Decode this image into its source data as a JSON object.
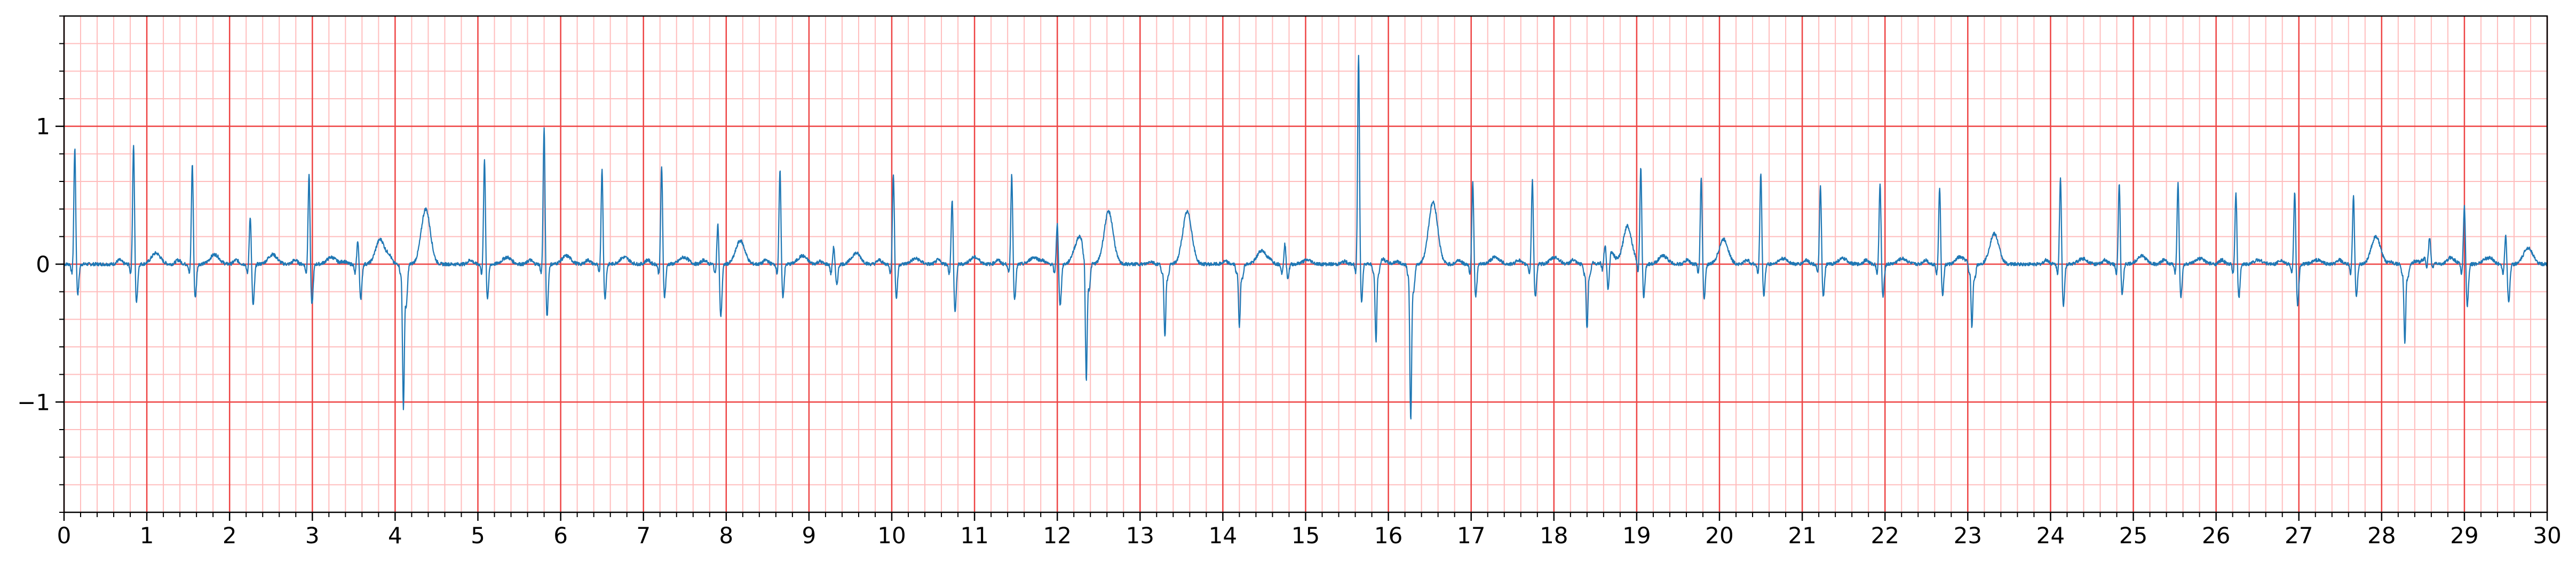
{
  "chart_data": {
    "type": "line",
    "title": "",
    "xlabel": "",
    "ylabel": "",
    "xlim": [
      0,
      30
    ],
    "ylim": [
      -1.8,
      1.8
    ],
    "x_major_ticks": [
      0,
      1,
      2,
      3,
      4,
      5,
      6,
      7,
      8,
      9,
      10,
      11,
      12,
      13,
      14,
      15,
      16,
      17,
      18,
      19,
      20,
      21,
      22,
      23,
      24,
      25,
      26,
      27,
      28,
      29,
      30
    ],
    "x_tick_labels": [
      "0",
      "1",
      "2",
      "3",
      "4",
      "5",
      "6",
      "7",
      "8",
      "9",
      "10",
      "11",
      "12",
      "13",
      "14",
      "15",
      "16",
      "17",
      "18",
      "19",
      "20",
      "21",
      "22",
      "23",
      "24",
      "25",
      "26",
      "27",
      "28",
      "29",
      "30"
    ],
    "x_minor_step": 0.2,
    "y_major_ticks": [
      -1,
      0,
      1
    ],
    "y_tick_labels": [
      "−1",
      "0",
      "1"
    ],
    "y_minor_step": 0.2,
    "grid": true,
    "major_grid_color": "#ee4444",
    "minor_grid_color": "#ffbdbd",
    "line_color": "#1f77b4",
    "beats": [
      {
        "t": 0.13,
        "r": 0.85,
        "s": -0.22,
        "p": 0.0,
        "tw": 0.0
      },
      {
        "t": 0.84,
        "r": 0.88,
        "s": -0.28,
        "p": 0.03,
        "tw": 0.08
      },
      {
        "t": 1.55,
        "r": 0.74,
        "s": -0.25,
        "p": 0.03,
        "tw": 0.07
      },
      {
        "t": 2.25,
        "r": 0.36,
        "s": -0.3,
        "p": 0.03,
        "tw": 0.07
      },
      {
        "t": 2.96,
        "r": 0.67,
        "s": -0.3,
        "p": 0.03,
        "tw": 0.05
      },
      {
        "t": 3.55,
        "r": 0.18,
        "s": -0.25,
        "p": 0.02,
        "tw": 0.18
      },
      {
        "t": 4.1,
        "r": -1.03,
        "s": -0.3,
        "p": 0.05,
        "tw": 0.4
      },
      {
        "t": 5.08,
        "r": 0.77,
        "s": -0.25,
        "p": 0.03,
        "tw": 0.05
      },
      {
        "t": 5.8,
        "r": 1.0,
        "s": -0.38,
        "p": 0.03,
        "tw": 0.06
      },
      {
        "t": 6.5,
        "r": 0.7,
        "s": -0.25,
        "p": 0.03,
        "tw": 0.05
      },
      {
        "t": 7.22,
        "r": 0.72,
        "s": -0.24,
        "p": 0.03,
        "tw": 0.05
      },
      {
        "t": 7.9,
        "r": 0.3,
        "s": -0.38,
        "p": 0.03,
        "tw": 0.17
      },
      {
        "t": 8.65,
        "r": 0.69,
        "s": -0.24,
        "p": 0.03,
        "tw": 0.06
      },
      {
        "t": 9.3,
        "r": 0.13,
        "s": -0.15,
        "p": 0.02,
        "tw": 0.08
      },
      {
        "t": 10.02,
        "r": 0.67,
        "s": -0.25,
        "p": 0.03,
        "tw": 0.04
      },
      {
        "t": 10.73,
        "r": 0.48,
        "s": -0.35,
        "p": 0.03,
        "tw": 0.05
      },
      {
        "t": 11.45,
        "r": 0.66,
        "s": -0.26,
        "p": 0.03,
        "tw": 0.05
      },
      {
        "t": 12.0,
        "r": 0.3,
        "s": -0.3,
        "p": 0.02,
        "tw": 0.2
      },
      {
        "t": 12.35,
        "r": -0.9,
        "s": -0.2,
        "p": 0.02,
        "tw": 0.38
      },
      {
        "t": 13.3,
        "r": -0.52,
        "s": -0.1,
        "p": 0.02,
        "tw": 0.38
      },
      {
        "t": 14.2,
        "r": -0.45,
        "s": -0.1,
        "p": 0.02,
        "tw": 0.1
      },
      {
        "t": 14.75,
        "r": 0.15,
        "s": -0.1,
        "p": 0.02,
        "tw": 0.03
      },
      {
        "t": 15.64,
        "r": 1.53,
        "s": -0.3,
        "p": 0.02,
        "tw": 0.04
      },
      {
        "t": 15.85,
        "r": -0.58,
        "s": -0.1,
        "p": 0.02,
        "tw": 0.0
      },
      {
        "t": 16.27,
        "r": -1.13,
        "s": -0.2,
        "p": 0.02,
        "tw": 0.45
      },
      {
        "t": 17.02,
        "r": 0.61,
        "s": -0.24,
        "p": 0.03,
        "tw": 0.05
      },
      {
        "t": 17.74,
        "r": 0.62,
        "s": -0.24,
        "p": 0.03,
        "tw": 0.05
      },
      {
        "t": 18.4,
        "r": -0.47,
        "s": -0.1,
        "p": 0.03,
        "tw": 0.1
      },
      {
        "t": 18.62,
        "r": 0.08,
        "s": -0.28,
        "p": 0.02,
        "tw": 0.25
      },
      {
        "t": 19.05,
        "r": 0.7,
        "s": -0.24,
        "p": 0.03,
        "tw": 0.06
      },
      {
        "t": 19.78,
        "r": 0.64,
        "s": -0.25,
        "p": 0.03,
        "tw": 0.18
      },
      {
        "t": 20.5,
        "r": 0.67,
        "s": -0.23,
        "p": 0.03,
        "tw": 0.04
      },
      {
        "t": 21.22,
        "r": 0.57,
        "s": -0.24,
        "p": 0.03,
        "tw": 0.04
      },
      {
        "t": 21.94,
        "r": 0.6,
        "s": -0.24,
        "p": 0.03,
        "tw": 0.04
      },
      {
        "t": 22.66,
        "r": 0.57,
        "s": -0.23,
        "p": 0.03,
        "tw": 0.04
      },
      {
        "t": 23.05,
        "r": -0.46,
        "s": -0.1,
        "p": 0.02,
        "tw": 0.22
      },
      {
        "t": 24.12,
        "r": 0.63,
        "s": -0.3,
        "p": 0.03,
        "tw": 0.04
      },
      {
        "t": 24.83,
        "r": 0.6,
        "s": -0.23,
        "p": 0.03,
        "tw": 0.06
      },
      {
        "t": 25.54,
        "r": 0.6,
        "s": -0.24,
        "p": 0.03,
        "tw": 0.04
      },
      {
        "t": 26.24,
        "r": 0.53,
        "s": -0.25,
        "p": 0.03,
        "tw": 0.03
      },
      {
        "t": 26.95,
        "r": 0.54,
        "s": -0.3,
        "p": 0.03,
        "tw": 0.03
      },
      {
        "t": 27.66,
        "r": 0.5,
        "s": -0.23,
        "p": 0.03,
        "tw": 0.2
      },
      {
        "t": 28.28,
        "r": -0.57,
        "s": -0.1,
        "p": 0.02,
        "tw": 0.05
      },
      {
        "t": 28.58,
        "r": 0.15,
        "s": -0.05,
        "p": 0.02,
        "tw": 0.03
      },
      {
        "t": 29.0,
        "r": 0.43,
        "s": -0.3,
        "p": 0.02,
        "tw": 0.04
      },
      {
        "t": 29.5,
        "r": 0.22,
        "s": -0.28,
        "p": 0.02,
        "tw": 0.12
      }
    ]
  }
}
